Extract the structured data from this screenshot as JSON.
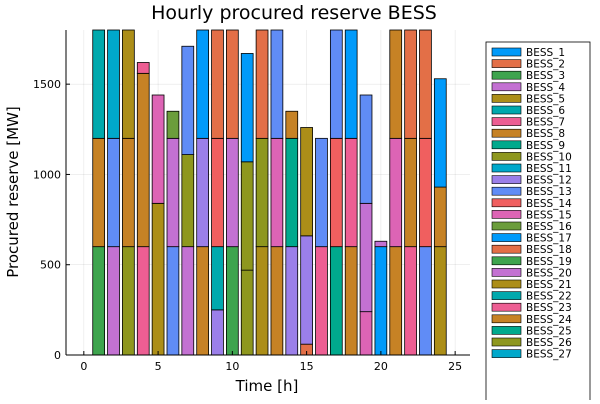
{
  "chart_data": {
    "type": "bar",
    "stacked": true,
    "title": "Hourly procured reserve BESS",
    "xlabel": "Time [h]",
    "ylabel": "Procured reserve [MW]",
    "xlim": [
      -1.2,
      26.0
    ],
    "ylim": [
      0,
      1800
    ],
    "xticks": [
      0,
      5,
      10,
      15,
      20,
      25
    ],
    "yticks": [
      0,
      500,
      1000,
      1500
    ],
    "grid": true,
    "legend_position": "right",
    "bar_width": 0.8,
    "hours": [
      1,
      2,
      3,
      4,
      5,
      6,
      7,
      8,
      9,
      10,
      11,
      12,
      13,
      14,
      15,
      16,
      17,
      18,
      19,
      20,
      21,
      22,
      23,
      24
    ],
    "series": [
      {
        "name": "BESS_1",
        "color": "#009AFA"
      },
      {
        "name": "BESS_2",
        "color": "#E36F47"
      },
      {
        "name": "BESS_3",
        "color": "#3EA44E"
      },
      {
        "name": "BESS_4",
        "color": "#C371D2"
      },
      {
        "name": "BESS_5",
        "color": "#AC8E18"
      },
      {
        "name": "BESS_6",
        "color": "#00A9AD"
      },
      {
        "name": "BESS_7",
        "color": "#ED5E93"
      },
      {
        "name": "BESS_8",
        "color": "#C68225"
      },
      {
        "name": "BESS_9",
        "color": "#00A98D"
      },
      {
        "name": "BESS_10",
        "color": "#8E971E"
      },
      {
        "name": "BESS_11",
        "color": "#00A8CB"
      },
      {
        "name": "BESS_12",
        "color": "#9B7FE9"
      },
      {
        "name": "BESS_13",
        "color": "#608CF6"
      },
      {
        "name": "BESS_14",
        "color": "#F05F5F"
      },
      {
        "name": "BESS_15",
        "color": "#DD64B5"
      },
      {
        "name": "BESS_16",
        "color": "#6B9D3B"
      },
      {
        "name": "BESS_17",
        "color": "#009AFA"
      },
      {
        "name": "BESS_18",
        "color": "#E36F47"
      },
      {
        "name": "BESS_19",
        "color": "#3EA44E"
      },
      {
        "name": "BESS_20",
        "color": "#C371D2"
      },
      {
        "name": "BESS_21",
        "color": "#AC8E18"
      },
      {
        "name": "BESS_22",
        "color": "#00A9AD"
      },
      {
        "name": "BESS_23",
        "color": "#ED5E93"
      },
      {
        "name": "BESS_24",
        "color": "#C68225"
      },
      {
        "name": "BESS_25",
        "color": "#00A98D"
      },
      {
        "name": "BESS_26",
        "color": "#8E971E"
      },
      {
        "name": "BESS_27",
        "color": "#00A8CB"
      }
    ],
    "stacks": [
      [
        {
          "s": "BESS_19",
          "v": 600
        },
        {
          "s": "BESS_24",
          "v": 600
        },
        {
          "s": "BESS_22",
          "v": 600
        }
      ],
      [
        {
          "s": "BESS_20",
          "v": 600
        },
        {
          "s": "BESS_13",
          "v": 600
        },
        {
          "s": "BESS_11",
          "v": 600
        }
      ],
      [
        {
          "s": "BESS_26",
          "v": 600
        },
        {
          "s": "BESS_24",
          "v": 600
        },
        {
          "s": "BESS_21",
          "v": 600
        }
      ],
      [
        {
          "s": "BESS_23",
          "v": 600
        },
        {
          "s": "BESS_8",
          "v": 960
        },
        {
          "s": "BESS_7",
          "v": 60
        }
      ],
      [
        {
          "s": "BESS_21",
          "v": 840
        },
        {
          "s": "BESS_15",
          "v": 600
        }
      ],
      [
        {
          "s": "BESS_13",
          "v": 600
        },
        {
          "s": "BESS_4",
          "v": 600
        },
        {
          "s": "BESS_16",
          "v": 150
        }
      ],
      [
        {
          "s": "BESS_20",
          "v": 600
        },
        {
          "s": "BESS_26",
          "v": 510
        },
        {
          "s": "BESS_13",
          "v": 600
        }
      ],
      [
        {
          "s": "BESS_8",
          "v": 600
        },
        {
          "s": "BESS_12",
          "v": 600
        },
        {
          "s": "BESS_17",
          "v": 600
        }
      ],
      [
        {
          "s": "BESS_12",
          "v": 250
        },
        {
          "s": "BESS_22",
          "v": 350
        },
        {
          "s": "BESS_14",
          "v": 600
        },
        {
          "s": "BESS_18",
          "v": 600
        }
      ],
      [
        {
          "s": "BESS_3",
          "v": 600
        },
        {
          "s": "BESS_20",
          "v": 600
        },
        {
          "s": "BESS_18",
          "v": 600
        }
      ],
      [
        {
          "s": "BESS_26",
          "v": 470
        },
        {
          "s": "BESS_10",
          "v": 600
        },
        {
          "s": "BESS_17",
          "v": 600
        }
      ],
      [
        {
          "s": "BESS_5",
          "v": 600
        },
        {
          "s": "BESS_10",
          "v": 600
        },
        {
          "s": "BESS_18",
          "v": 600
        }
      ],
      [
        {
          "s": "BESS_8",
          "v": 600
        },
        {
          "s": "BESS_15",
          "v": 600
        },
        {
          "s": "BESS_13",
          "v": 600
        }
      ],
      [
        {
          "s": "BESS_12",
          "v": 600
        },
        {
          "s": "BESS_25",
          "v": 600
        },
        {
          "s": "BESS_8",
          "v": 150
        }
      ],
      [
        {
          "s": "BESS_18",
          "v": 60
        },
        {
          "s": "BESS_12",
          "v": 600
        },
        {
          "s": "BESS_5",
          "v": 600
        }
      ],
      [
        {
          "s": "BESS_23",
          "v": 600
        },
        {
          "s": "BESS_13",
          "v": 600
        }
      ],
      [
        {
          "s": "BESS_9",
          "v": 600
        },
        {
          "s": "BESS_14",
          "v": 600
        },
        {
          "s": "BESS_13",
          "v": 600
        }
      ],
      [
        {
          "s": "BESS_24",
          "v": 600
        },
        {
          "s": "BESS_23",
          "v": 600
        },
        {
          "s": "BESS_17",
          "v": 600
        }
      ],
      [
        {
          "s": "BESS_15",
          "v": 240
        },
        {
          "s": "BESS_20",
          "v": 600
        },
        {
          "s": "BESS_13",
          "v": 600
        }
      ],
      [
        {
          "s": "BESS_17",
          "v": 600
        },
        {
          "s": "BESS_20",
          "v": 30
        }
      ],
      [
        {
          "s": "BESS_8",
          "v": 600
        },
        {
          "s": "BESS_15",
          "v": 600
        },
        {
          "s": "BESS_8",
          "v": 600
        }
      ],
      [
        {
          "s": "BESS_23",
          "v": 600
        },
        {
          "s": "BESS_24",
          "v": 600
        },
        {
          "s": "BESS_18",
          "v": 600
        }
      ],
      [
        {
          "s": "BESS_13",
          "v": 600
        },
        {
          "s": "BESS_14",
          "v": 600
        },
        {
          "s": "BESS_18",
          "v": 600
        }
      ],
      [
        {
          "s": "BESS_21",
          "v": 600
        },
        {
          "s": "BESS_24",
          "v": 330
        },
        {
          "s": "BESS_1",
          "v": 600
        }
      ]
    ]
  }
}
